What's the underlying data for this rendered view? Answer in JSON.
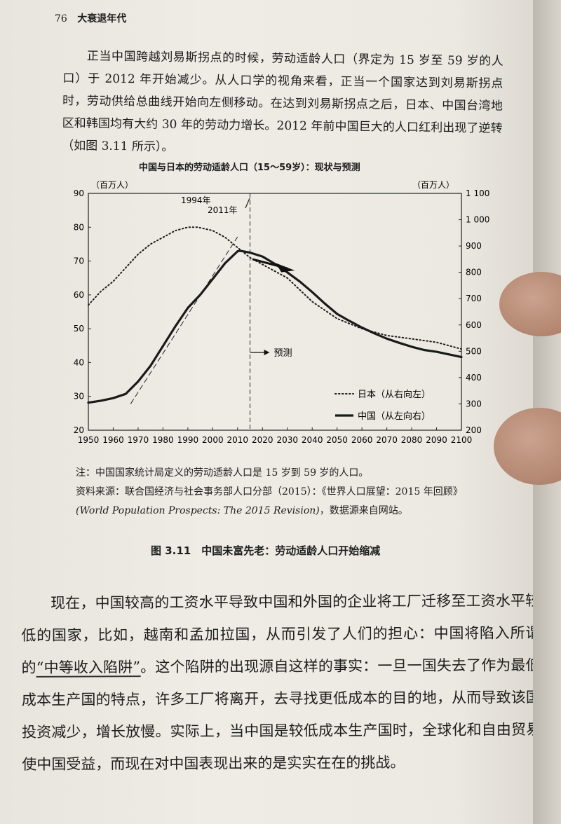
{
  "header": {
    "page_number": "76",
    "book_title": "大衰退年代"
  },
  "paragraph_top": "正当中国跨越刘易斯拐点的时候，劳动适龄人口（界定为 15 岁至 59 岁的人口）于 2012 年开始减少。从人口学的视角来看，正当一个国家达到刘易斯拐点时，劳动供给总曲线开始向左侧移动。在达到刘易斯拐点之后，日本、中国台湾地区和韩国均有大约 30 年的劳动力增长。2012 年前中国巨大的人口红利出现了逆转（如图 3.11 所示）。",
  "chart_data": {
    "type": "line",
    "title": "中国与日本的劳动适龄人口（15～59岁）：现状与预测",
    "left_axis_unit": "（百万人）",
    "right_axis_unit": "（百万人）",
    "x_ticks": [
      "1950",
      "1960",
      "1970",
      "1980",
      "1990",
      "2000",
      "2010",
      "2020",
      "2030",
      "2040",
      "2050",
      "2060",
      "2070",
      "2080",
      "2090",
      "2100"
    ],
    "xlim": [
      1950,
      2100
    ],
    "left_ticks": [
      "20",
      "30",
      "40",
      "50",
      "60",
      "70",
      "80",
      "90"
    ],
    "left_ylim": [
      20,
      90
    ],
    "right_ticks": [
      "200",
      "300",
      "400",
      "500",
      "600",
      "700",
      "800",
      "900",
      "1 000",
      "1 100"
    ],
    "right_ylim": [
      200,
      1100
    ],
    "annotations": {
      "y1994": "1994年",
      "y2011": "2011年",
      "forecast": "预测"
    },
    "forecast_start": 2015,
    "series": [
      {
        "name": "日本（从右向左）",
        "axis": "left",
        "style": "dotted",
        "x": [
          1950,
          1955,
          1960,
          1965,
          1970,
          1975,
          1980,
          1985,
          1990,
          1994,
          2000,
          2005,
          2010,
          2015,
          2020,
          2025,
          2030,
          2040,
          2050,
          2060,
          2070,
          2080,
          2090,
          2100
        ],
        "y": [
          57,
          61,
          64,
          68,
          72,
          75,
          77,
          79,
          80,
          80,
          79,
          77,
          74,
          71,
          69,
          67,
          65,
          58,
          53,
          50,
          48,
          47,
          46,
          44
        ]
      },
      {
        "name": "中国（从左向右）",
        "axis": "right",
        "style": "solid",
        "x": [
          1950,
          1955,
          1960,
          1965,
          1970,
          1975,
          1980,
          1985,
          1990,
          1995,
          2000,
          2005,
          2010,
          2011,
          2015,
          2020,
          2025,
          2030,
          2035,
          2040,
          2045,
          2050,
          2055,
          2060,
          2065,
          2070,
          2075,
          2080,
          2085,
          2090,
          2095,
          2100
        ],
        "y": [
          305,
          312,
          322,
          338,
          385,
          445,
          520,
          595,
          665,
          715,
          775,
          835,
          880,
          882,
          875,
          860,
          832,
          800,
          765,
          725,
          682,
          642,
          615,
          590,
          568,
          548,
          532,
          517,
          505,
          498,
          488,
          478
        ]
      }
    ]
  },
  "note": "注：中国国家统计局定义的劳动适龄人口是 15 岁到 59 岁的人口。",
  "source_line1": "资料来源：联合国经济与社会事务部人口分部（2015）：《世界人口展望：2015 年回顾》",
  "source_en": "(World Population Prospects: The 2015 Revision)",
  "source_tail": "，数据源来自网站。",
  "figure_caption": "图 3.11　中国未富先老：劳动适龄人口开始缩减",
  "paragraph_bottom_a": "现在，中国较高的工资水平导致中国和外国的企业将工厂迁移至工资水平较低的国家，比如，越南和孟加拉国，从而引发了人们的担心：中国将陷入所谓的",
  "paragraph_bottom_u": "“中等收入陷阱”",
  "paragraph_bottom_b": "。这个陷阱的出现源自这样的事实：一旦一国失去了作为最低成本生产国的特点，许多工厂将离开，去寻找更低成本的目的地，从而导致该国投资减少，增长放慢。实际上，当中国是较低成本生产国时，全球化和自由贸易使中国受益，而现在对中国表现出来的是实实在在的挑战。"
}
